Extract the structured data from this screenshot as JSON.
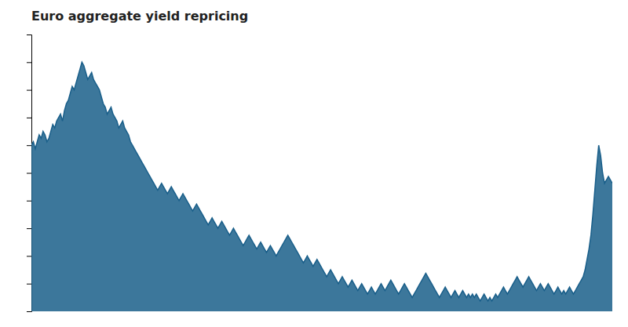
{
  "chart_data": {
    "type": "area",
    "title": "Euro aggregate yield repricing",
    "color": "#1a5f8a",
    "values": [
      4.8,
      4.9,
      4.7,
      4.9,
      5.1,
      5.0,
      5.2,
      5.1,
      4.9,
      5.0,
      5.2,
      5.4,
      5.3,
      5.5,
      5.6,
      5.7,
      5.5,
      5.8,
      6.0,
      6.1,
      6.3,
      6.5,
      6.4,
      6.6,
      6.8,
      7.0,
      7.2,
      7.1,
      6.9,
      6.7,
      6.8,
      6.9,
      6.7,
      6.6,
      6.5,
      6.4,
      6.2,
      6.0,
      5.9,
      5.7,
      5.8,
      5.9,
      5.7,
      5.6,
      5.5,
      5.3,
      5.4,
      5.5,
      5.3,
      5.2,
      5.1,
      4.9,
      4.8,
      4.7,
      4.6,
      4.5,
      4.4,
      4.3,
      4.2,
      4.1,
      4.0,
      3.9,
      3.8,
      3.7,
      3.6,
      3.5,
      3.6,
      3.7,
      3.6,
      3.5,
      3.4,
      3.5,
      3.6,
      3.5,
      3.4,
      3.3,
      3.2,
      3.3,
      3.4,
      3.3,
      3.2,
      3.1,
      3.0,
      2.9,
      3.0,
      3.1,
      3.0,
      2.9,
      2.8,
      2.7,
      2.6,
      2.5,
      2.6,
      2.7,
      2.6,
      2.5,
      2.4,
      2.5,
      2.6,
      2.5,
      2.4,
      2.3,
      2.2,
      2.3,
      2.4,
      2.3,
      2.2,
      2.1,
      2.0,
      1.9,
      2.0,
      2.1,
      2.2,
      2.1,
      2.0,
      1.9,
      1.8,
      1.9,
      2.0,
      1.9,
      1.8,
      1.7,
      1.8,
      1.9,
      1.8,
      1.7,
      1.6,
      1.7,
      1.8,
      1.9,
      2.0,
      2.1,
      2.2,
      2.1,
      2.0,
      1.9,
      1.8,
      1.7,
      1.6,
      1.5,
      1.4,
      1.5,
      1.6,
      1.5,
      1.4,
      1.3,
      1.4,
      1.5,
      1.4,
      1.3,
      1.2,
      1.1,
      1.0,
      1.1,
      1.2,
      1.1,
      1.0,
      0.9,
      0.8,
      0.9,
      1.0,
      0.9,
      0.8,
      0.7,
      0.8,
      0.9,
      0.8,
      0.7,
      0.6,
      0.7,
      0.8,
      0.7,
      0.6,
      0.5,
      0.6,
      0.7,
      0.6,
      0.5,
      0.6,
      0.7,
      0.8,
      0.7,
      0.6,
      0.7,
      0.8,
      0.9,
      0.8,
      0.7,
      0.6,
      0.5,
      0.6,
      0.7,
      0.8,
      0.7,
      0.6,
      0.5,
      0.4,
      0.5,
      0.6,
      0.7,
      0.8,
      0.9,
      1.0,
      1.1,
      1.0,
      0.9,
      0.8,
      0.7,
      0.6,
      0.5,
      0.4,
      0.5,
      0.6,
      0.7,
      0.6,
      0.5,
      0.4,
      0.5,
      0.6,
      0.5,
      0.4,
      0.5,
      0.6,
      0.5,
      0.4,
      0.5,
      0.4,
      0.5,
      0.4,
      0.5,
      0.4,
      0.3,
      0.4,
      0.5,
      0.4,
      0.3,
      0.4,
      0.3,
      0.4,
      0.5,
      0.4,
      0.5,
      0.6,
      0.7,
      0.6,
      0.5,
      0.6,
      0.7,
      0.8,
      0.9,
      1.0,
      0.9,
      0.8,
      0.7,
      0.8,
      0.9,
      1.0,
      0.9,
      0.8,
      0.7,
      0.6,
      0.7,
      0.8,
      0.7,
      0.6,
      0.7,
      0.8,
      0.7,
      0.6,
      0.5,
      0.6,
      0.7,
      0.6,
      0.5,
      0.6,
      0.5,
      0.6,
      0.7,
      0.6,
      0.5,
      0.6,
      0.7,
      0.8,
      0.9,
      1.0,
      1.2,
      1.5,
      1.8,
      2.2,
      2.8,
      3.5,
      4.2,
      4.8,
      4.5,
      4.0,
      3.7,
      3.8,
      3.9,
      3.8,
      3.7
    ],
    "ylim": [
      0,
      8
    ],
    "yticks": [
      0,
      0.8,
      1.6,
      2.4,
      3.2,
      4,
      4.8,
      5.6,
      6.4,
      7.2
    ],
    "tick_labels": false
  }
}
